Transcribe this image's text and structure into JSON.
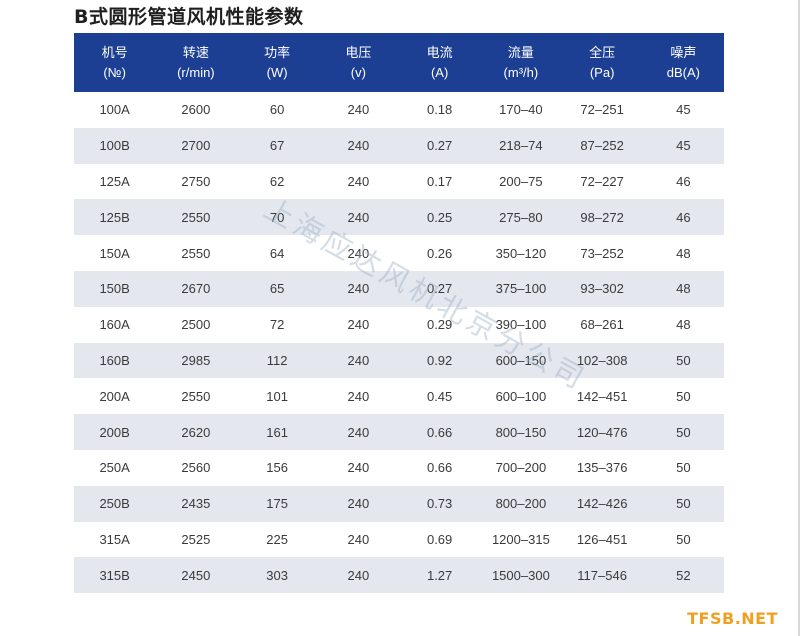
{
  "title": "B式圆形管道风机性能参数",
  "colors": {
    "header_bg": "#1c3f94",
    "stripe_bg": "#e4e7ee",
    "logo": "#f0a020"
  },
  "table": {
    "headers": [
      {
        "line1": "机号",
        "line2": "(№)"
      },
      {
        "line1": "转速",
        "line2": "(r/min)"
      },
      {
        "line1": "功率",
        "line2": "(W)"
      },
      {
        "line1": "电压",
        "line2": "(v)"
      },
      {
        "line1": "电流",
        "line2": "(A)"
      },
      {
        "line1": "流量",
        "line2": "(m³/h)"
      },
      {
        "line1": "全压",
        "line2": "(Pa)"
      },
      {
        "line1": "噪声",
        "line2": "dB(A)"
      }
    ],
    "rows": [
      [
        "100A",
        "2600",
        "60",
        "240",
        "0.18",
        "170–40",
        "72–251",
        "45"
      ],
      [
        "100B",
        "2700",
        "67",
        "240",
        "0.27",
        "218–74",
        "87–252",
        "45"
      ],
      [
        "125A",
        "2750",
        "62",
        "240",
        "0.17",
        "200–75",
        "72–227",
        "46"
      ],
      [
        "125B",
        "2550",
        "70",
        "240",
        "0.25",
        "275–80",
        "98–272",
        "46"
      ],
      [
        "150A",
        "2550",
        "64",
        "240",
        "0.26",
        "350–120",
        "73–252",
        "48"
      ],
      [
        "150B",
        "2670",
        "65",
        "240",
        "0.27",
        "375–100",
        "93–302",
        "48"
      ],
      [
        "160A",
        "2500",
        "72",
        "240",
        "0.29",
        "390–100",
        "68–261",
        "48"
      ],
      [
        "160B",
        "2985",
        "112",
        "240",
        "0.92",
        "600–150",
        "102–308",
        "50"
      ],
      [
        "200A",
        "2550",
        "101",
        "240",
        "0.45",
        "600–100",
        "142–451",
        "50"
      ],
      [
        "200B",
        "2620",
        "161",
        "240",
        "0.66",
        "800–150",
        "120–476",
        "50"
      ],
      [
        "250A",
        "2560",
        "156",
        "240",
        "0.66",
        "700–200",
        "135–376",
        "50"
      ],
      [
        "250B",
        "2435",
        "175",
        "240",
        "0.73",
        "800–200",
        "142–426",
        "50"
      ],
      [
        "315A",
        "2525",
        "225",
        "240",
        "0.69",
        "1200–315",
        "126–451",
        "50"
      ],
      [
        "315B",
        "2450",
        "303",
        "240",
        "1.27",
        "1500–300",
        "117–546",
        "52"
      ]
    ]
  },
  "watermark": "上海应达风机北京分公司",
  "site_logo": "TFSB.NET"
}
